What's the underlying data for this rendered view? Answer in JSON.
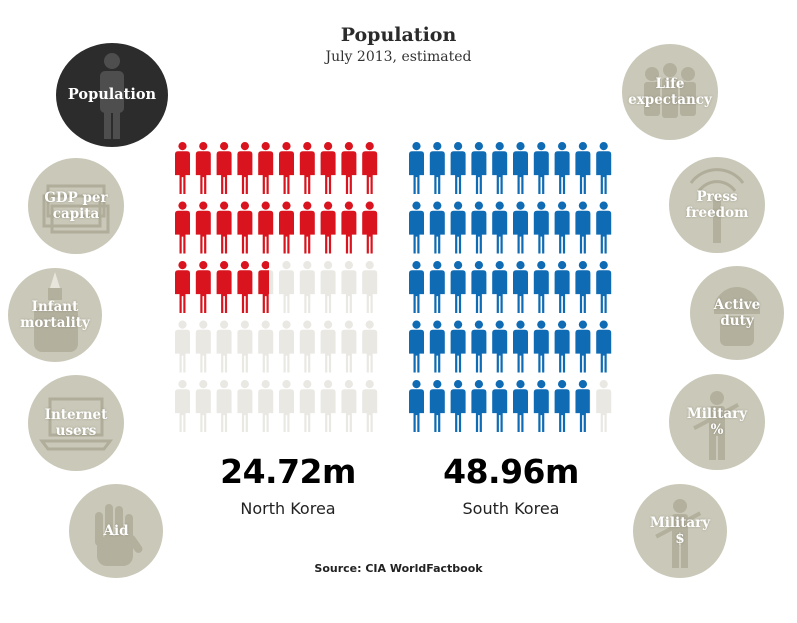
{
  "title": "Population",
  "subtitle": "July 2013, estimated",
  "source": "Source: CIA WorldFactbook",
  "colors": {
    "north_korea": "#d9141e",
    "south_korea": "#0f6bb3",
    "empty_figure": "#e9e8e3",
    "nav_circle": "#cac8b8",
    "nav_active": "#2c2c2c"
  },
  "nav": {
    "left": [
      {
        "label": "Population",
        "icon": "person-icon",
        "active": true
      },
      {
        "label": "GDP per capita",
        "icon": "money-stack-icon",
        "active": false
      },
      {
        "label": "Infant mortality",
        "icon": "baby-bottle-icon",
        "active": false
      },
      {
        "label": "Internet users",
        "icon": "laptop-icon",
        "active": false
      },
      {
        "label": "Aid",
        "icon": "hand-icon",
        "active": false
      }
    ],
    "right": [
      {
        "label": "Life expectancy",
        "icon": "people-group-icon",
        "active": false
      },
      {
        "label": "Press freedom",
        "icon": "radio-tower-icon",
        "active": false
      },
      {
        "label": "Active duty",
        "icon": "soldier-helmet-icon",
        "active": false
      },
      {
        "label": "Military %",
        "icon": "soldier-rifle-icon",
        "active": false
      },
      {
        "label": "Military $",
        "icon": "soldier-rifle-icon",
        "active": false
      }
    ]
  },
  "chart_data": {
    "type": "pictogram",
    "title": "Population",
    "subtitle": "July 2013, estimated",
    "unit": "m",
    "grid": {
      "rows": 5,
      "cols": 10
    },
    "series": [
      {
        "name": "North Korea",
        "value": 24.72,
        "value_label": "24.72m",
        "filled_figures": 24.72,
        "total_figures": 50,
        "color": "#d9141e"
      },
      {
        "name": "South Korea",
        "value": 48.96,
        "value_label": "48.96m",
        "filled_figures": 48.96,
        "total_figures": 50,
        "color": "#0f6bb3"
      }
    ]
  }
}
